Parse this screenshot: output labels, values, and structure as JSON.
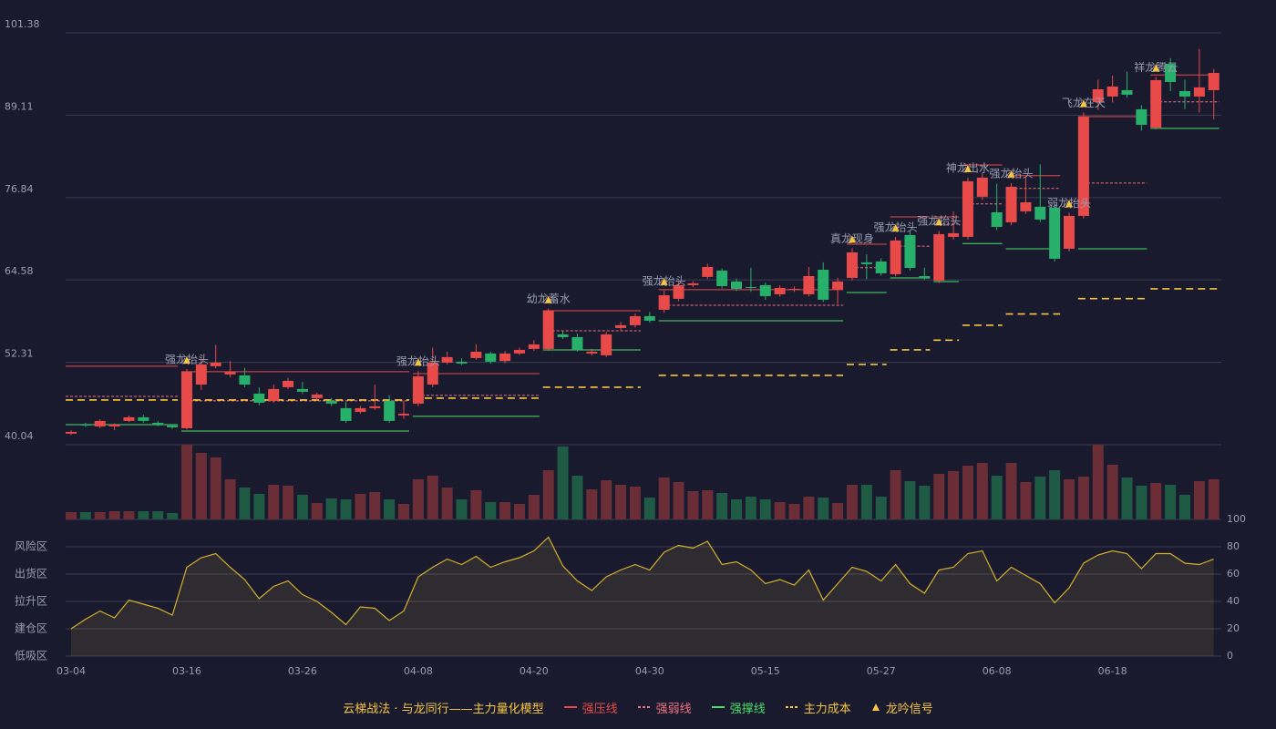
{
  "chart_data": {
    "type": "candlestick",
    "categories": [
      "03-04",
      null,
      null,
      null,
      null,
      null,
      null,
      null,
      "03-16",
      null,
      null,
      null,
      null,
      null,
      null,
      null,
      "03-26",
      null,
      null,
      null,
      null,
      null,
      null,
      null,
      "04-08",
      null,
      null,
      null,
      null,
      null,
      null,
      null,
      "04-20",
      null,
      null,
      null,
      null,
      null,
      null,
      null,
      "04-30",
      null,
      null,
      null,
      null,
      null,
      null,
      null,
      "05-15",
      null,
      null,
      null,
      null,
      null,
      null,
      null,
      "05-27",
      null,
      null,
      null,
      null,
      null,
      null,
      null,
      "06-08",
      null,
      null,
      null,
      null,
      null,
      null,
      null,
      "06-18",
      null,
      null,
      null,
      null,
      null,
      null,
      null
    ],
    "open": [
      41.68,
      43.03,
      42.76,
      42.76,
      43.58,
      44.12,
      43.3,
      42.9,
      42.49,
      48.99,
      51.72,
      50.5,
      50.36,
      47.65,
      46.57,
      48.6,
      48.33,
      46.97,
      46.57,
      45.48,
      44.93,
      45.48,
      46.57,
      44.4,
      46.16,
      48.99,
      52.26,
      52.4,
      52.94,
      53.62,
      52.5,
      53.62,
      54.3,
      54.3,
      56.47,
      56.06,
      53.62,
      53.35,
      57.42,
      57.83,
      59.18,
      60.13,
      61.76,
      63.8,
      65.02,
      65.97,
      64.34,
      63.52,
      63.8,
      62.44,
      63.12,
      62.44,
      66.1,
      63.12,
      64.88,
      67.19,
      67.32,
      65.43,
      71.26,
      65.15,
      64.47,
      70.99,
      70.99,
      76.96,
      74.65,
      73.16,
      74.79,
      75.47,
      75.33,
      69.22,
      74.11,
      91.07,
      91.89,
      92.84,
      89.99,
      87.27,
      96.77,
      92.7,
      91.89,
      92.84
    ],
    "close": [
      41.95,
      42.9,
      43.58,
      43.03,
      44.12,
      43.58,
      43.03,
      42.63,
      50.91,
      51.99,
      52.26,
      50.91,
      48.99,
      46.29,
      48.33,
      49.55,
      47.92,
      47.51,
      46.16,
      43.58,
      45.48,
      45.75,
      43.58,
      44.66,
      50.23,
      52.26,
      53.08,
      52.13,
      53.89,
      52.4,
      53.62,
      54.16,
      54.98,
      59.99,
      56.06,
      54.16,
      53.89,
      56.47,
      57.83,
      59.18,
      58.5,
      62.3,
      63.8,
      64.07,
      66.51,
      63.66,
      63.25,
      63.39,
      62.17,
      63.39,
      63.25,
      65.15,
      61.63,
      64.34,
      68.68,
      66.92,
      65.56,
      70.45,
      66.37,
      64.88,
      71.39,
      71.53,
      79.27,
      79.81,
      72.48,
      78.45,
      76.14,
      73.57,
      67.73,
      74.11,
      88.9,
      92.97,
      93.38,
      92.16,
      87.68,
      94.33,
      94.06,
      91.89,
      93.25,
      95.41
    ],
    "high": [
      42.2,
      43.3,
      43.8,
      43.2,
      44.4,
      44.5,
      43.6,
      43.1,
      51.3,
      53.1,
      54.9,
      52.5,
      51.5,
      48.6,
      49.0,
      50.0,
      49.4,
      47.8,
      47.0,
      46.4,
      45.8,
      49.0,
      47.4,
      46.6,
      51.0,
      54.5,
      53.9,
      52.9,
      55.0,
      53.9,
      54.0,
      54.5,
      55.6,
      60.3,
      57.0,
      56.6,
      54.3,
      56.8,
      58.3,
      59.6,
      59.8,
      63.0,
      64.5,
      64.4,
      67.0,
      66.3,
      64.8,
      66.4,
      64.2,
      63.8,
      63.6,
      66.5,
      67.2,
      64.9,
      69.3,
      68.4,
      67.8,
      71.0,
      71.8,
      66.4,
      71.9,
      74.8,
      79.8,
      80.5,
      78.9,
      79.0,
      79.8,
      81.8,
      75.8,
      74.6,
      89.5,
      94.4,
      95.0,
      95.6,
      90.6,
      94.8,
      97.6,
      94.4,
      99.0,
      96.0
    ],
    "low": [
      41.5,
      42.7,
      42.5,
      42.2,
      43.4,
      43.3,
      42.8,
      42.4,
      42.3,
      48.2,
      51.4,
      50.1,
      48.6,
      45.9,
      46.3,
      48.3,
      47.6,
      46.7,
      45.8,
      43.3,
      44.7,
      45.2,
      43.3,
      43.9,
      45.8,
      48.6,
      52.0,
      51.9,
      52.7,
      52.1,
      52.2,
      53.4,
      54.0,
      54.0,
      55.8,
      53.9,
      53.3,
      53.1,
      57.1,
      57.5,
      58.2,
      59.7,
      61.4,
      63.5,
      64.7,
      63.3,
      62.9,
      62.8,
      61.6,
      62.1,
      62.8,
      62.1,
      61.3,
      61.0,
      64.5,
      64.7,
      65.2,
      65.1,
      66.0,
      64.6,
      64.1,
      70.6,
      70.6,
      76.5,
      72.0,
      72.7,
      74.4,
      73.2,
      67.3,
      68.8,
      73.7,
      89.9,
      91.0,
      91.7,
      86.8,
      87.0,
      92.7,
      90.0,
      89.5,
      88.5
    ],
    "ylim": [
      40.04,
      101.38
    ],
    "yticks": [
      40.04,
      52.31,
      64.58,
      76.84,
      89.11,
      101.38
    ],
    "up_color": "#e84a4a",
    "down_color": "#26b06a",
    "grid": true,
    "volume": [
      8,
      8,
      8,
      9,
      9,
      9,
      9,
      7,
      82,
      73,
      68,
      44,
      35,
      28,
      38,
      37,
      27,
      18,
      23,
      22,
      28,
      30,
      22,
      17,
      44,
      48,
      35,
      22,
      32,
      19,
      19,
      17,
      27,
      54,
      80,
      48,
      33,
      43,
      38,
      36,
      24,
      46,
      41,
      31,
      32,
      29,
      22,
      25,
      22,
      19,
      17,
      25,
      24,
      18,
      38,
      38,
      25,
      54,
      42,
      37,
      50,
      53,
      59,
      62,
      48,
      62,
      41,
      47,
      54,
      44,
      47,
      82,
      60,
      46,
      37,
      40,
      38,
      27,
      42,
      44
    ],
    "volume_lim": [
      0,
      82
    ],
    "volume_up_color": "#6b2e37",
    "volume_down_color": "#1e5a44",
    "indicator": {
      "values": [
        20,
        27,
        33,
        28,
        41,
        38,
        35,
        30,
        65,
        72,
        75,
        65,
        56,
        42,
        51,
        55,
        45,
        40,
        32,
        23,
        36,
        35,
        26,
        33,
        58,
        65,
        71,
        67,
        73,
        65,
        69,
        72,
        77,
        87,
        66,
        55,
        48,
        58,
        63,
        67,
        63,
        76,
        81,
        79,
        84,
        67,
        69,
        63,
        53,
        56,
        52,
        63,
        41,
        53,
        65,
        62,
        55,
        67,
        53,
        46,
        63,
        65,
        75,
        77,
        55,
        65,
        59,
        53,
        39,
        50,
        68,
        74,
        77,
        75,
        64,
        75,
        75,
        68,
        67,
        71
      ],
      "color": "#d4b02a",
      "y2lim": [
        0,
        100
      ],
      "y2ticks": [
        0,
        20,
        40,
        60,
        80,
        100
      ],
      "y2tick_colors": [
        "#e84a5a",
        "#e8a040",
        "#4a9fe8",
        "#e8a040",
        "#e8a040",
        "#3ddc6a"
      ],
      "zones": [
        "风险区",
        "出货区",
        "拉升区",
        "建仓区",
        "低吸区"
      ],
      "zone_values": [
        80,
        60,
        40,
        20,
        0
      ],
      "zone_colors": [
        "#e8a040",
        "#e040e0",
        "#4a9fe8",
        "#e84a5a",
        "#e84a5a"
      ]
    },
    "lines": [
      {
        "name": "强压线",
        "color": "#e84a4a",
        "style": "solid",
        "segments": [
          {
            "start": 0,
            "end": 7,
            "value": 51.72
          },
          {
            "start": 8,
            "end": 23,
            "value": 50.91
          },
          {
            "start": 24,
            "end": 32,
            "value": 50.63
          },
          {
            "start": 33,
            "end": 39,
            "value": 59.99
          },
          {
            "start": 41,
            "end": 53,
            "value": 63.12
          },
          {
            "start": 54,
            "end": 56,
            "value": 69.9
          },
          {
            "start": 57,
            "end": 59,
            "value": 73.97
          },
          {
            "start": 60,
            "end": 61,
            "value": 73.97
          },
          {
            "start": 62,
            "end": 64,
            "value": 81.7
          },
          {
            "start": 65,
            "end": 68,
            "value": 80.1
          },
          {
            "start": 70,
            "end": 74,
            "value": 88.9
          },
          {
            "start": 75,
            "end": 79,
            "value": 95.1
          }
        ]
      },
      {
        "name": "强弱线",
        "color": "#f07080",
        "style": "dotted",
        "segments": [
          {
            "start": 0,
            "end": 7,
            "value": 47.24
          },
          {
            "start": 8,
            "end": 23,
            "value": 46.57
          },
          {
            "start": 24,
            "end": 32,
            "value": 47.38
          },
          {
            "start": 33,
            "end": 39,
            "value": 57.0
          },
          {
            "start": 41,
            "end": 53,
            "value": 60.8
          },
          {
            "start": 54,
            "end": 56,
            "value": 66.4
          },
          {
            "start": 57,
            "end": 59,
            "value": 69.6
          },
          {
            "start": 60,
            "end": 61,
            "value": 72.9
          },
          {
            "start": 62,
            "end": 64,
            "value": 75.9
          },
          {
            "start": 65,
            "end": 68,
            "value": 78.2
          },
          {
            "start": 70,
            "end": 74,
            "value": 79.0
          },
          {
            "start": 75,
            "end": 79,
            "value": 91.1
          }
        ]
      },
      {
        "name": "强撑线",
        "color": "#4ade6a",
        "style": "solid",
        "segments": [
          {
            "start": 0,
            "end": 7,
            "value": 43.03
          },
          {
            "start": 8,
            "end": 23,
            "value": 42.08
          },
          {
            "start": 24,
            "end": 32,
            "value": 44.26
          },
          {
            "start": 33,
            "end": 39,
            "value": 54.16
          },
          {
            "start": 41,
            "end": 53,
            "value": 58.5
          },
          {
            "start": 54,
            "end": 56,
            "value": 62.71
          },
          {
            "start": 57,
            "end": 59,
            "value": 64.88
          },
          {
            "start": 60,
            "end": 61,
            "value": 64.34
          },
          {
            "start": 62,
            "end": 64,
            "value": 70.0
          },
          {
            "start": 65,
            "end": 68,
            "value": 69.22
          },
          {
            "start": 70,
            "end": 74,
            "value": 69.22
          },
          {
            "start": 75,
            "end": 79,
            "value": 87.14
          }
        ]
      },
      {
        "name": "主力成本",
        "color": "#f5c542",
        "style": "dashed",
        "segments": [
          {
            "start": 0,
            "end": 7,
            "value": 46.7
          },
          {
            "start": 8,
            "end": 23,
            "value": 46.7
          },
          {
            "start": 24,
            "end": 32,
            "value": 46.97
          },
          {
            "start": 33,
            "end": 39,
            "value": 48.6
          },
          {
            "start": 41,
            "end": 53,
            "value": 50.36
          },
          {
            "start": 54,
            "end": 56,
            "value": 51.99
          },
          {
            "start": 57,
            "end": 59,
            "value": 54.16
          },
          {
            "start": 60,
            "end": 61,
            "value": 55.6
          },
          {
            "start": 62,
            "end": 64,
            "value": 57.83
          },
          {
            "start": 65,
            "end": 68,
            "value": 59.5
          },
          {
            "start": 70,
            "end": 74,
            "value": 61.8
          },
          {
            "start": 75,
            "end": 79,
            "value": 63.25
          }
        ]
      }
    ],
    "signals": [
      {
        "index": 8,
        "label": "强龙抬头",
        "color": "#6ec6ff"
      },
      {
        "index": 24,
        "label": "强龙抬头",
        "color": "#6ec6ff"
      },
      {
        "index": 33,
        "label": "幼龙蓄水",
        "color": "#f5c542"
      },
      {
        "index": 41,
        "label": "强龙抬头",
        "color": "#6ec6ff"
      },
      {
        "index": 54,
        "label": "真龙现身",
        "color": "#f5c542"
      },
      {
        "index": 57,
        "label": "强龙抬头",
        "color": "#6ec6ff"
      },
      {
        "index": 60,
        "label": "强龙抬头",
        "color": "#6ec6ff"
      },
      {
        "index": 62,
        "label": "神龙出水",
        "color": "#f5c542"
      },
      {
        "index": 65,
        "label": "强龙抬头",
        "color": "#6ec6ff"
      },
      {
        "index": 69,
        "label": "弱龙抬头",
        "color": "#6ec6ff"
      },
      {
        "index": 70,
        "label": "飞龙在天",
        "color": "#f5c542"
      },
      {
        "index": 75,
        "label": "祥龙腾云",
        "color": "#f5c542"
      }
    ],
    "signal_name": "龙吟信号",
    "signal_color": "#f5c542",
    "legend_title": "云梯战法 · 与龙同行——主力量化模型",
    "legend_title_color": "#f5c542"
  }
}
